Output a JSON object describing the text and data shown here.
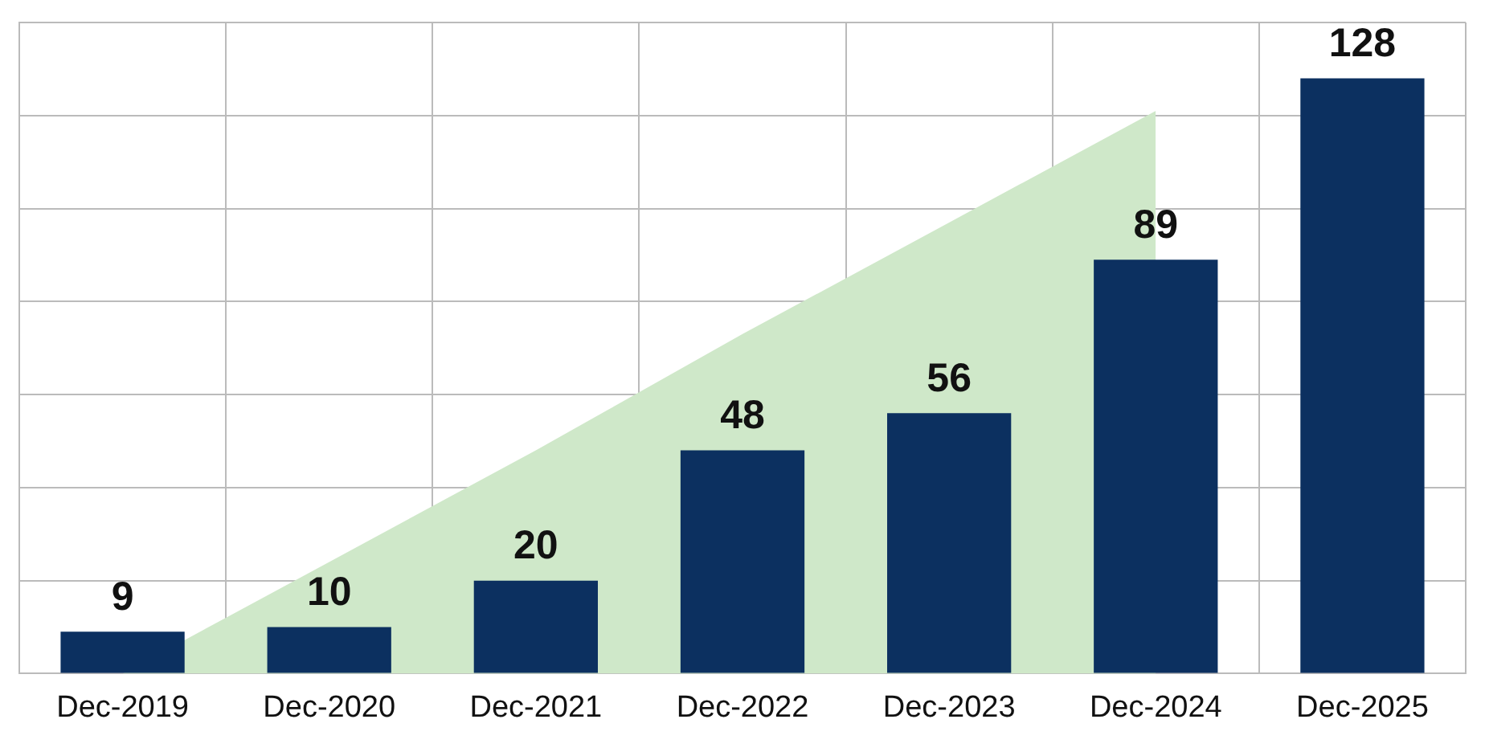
{
  "chart_data": {
    "type": "bar",
    "categories": [
      "Dec-2019",
      "Dec-2020",
      "Dec-2021",
      "Dec-2022",
      "Dec-2023",
      "Dec-2024",
      "Dec-2025"
    ],
    "series": [
      {
        "color": "#0c3060",
        "values": [
          9,
          10,
          20,
          48,
          56,
          89,
          128
        ],
        "value_labels": [
          "9",
          "10",
          "20",
          "48",
          "56",
          "89",
          "128"
        ]
      },
      {
        "type": "area",
        "color": "#cfe8c9",
        "values": [
          0,
          24,
          48,
          73,
          97,
          121,
          null
        ]
      }
    ],
    "ylim": [
      0,
      140
    ],
    "yticks": [
      {
        "value": 0,
        "label": null
      },
      {
        "value": 20,
        "label": null
      },
      {
        "value": 40,
        "label": null
      },
      {
        "value": 60,
        "label": null
      },
      {
        "value": 80,
        "label": null
      },
      {
        "value": 100,
        "label": null
      },
      {
        "value": 120,
        "label": null
      },
      {
        "value": 140,
        "label": null
      }
    ],
    "grid": true,
    "tick_labels": "x"
  }
}
